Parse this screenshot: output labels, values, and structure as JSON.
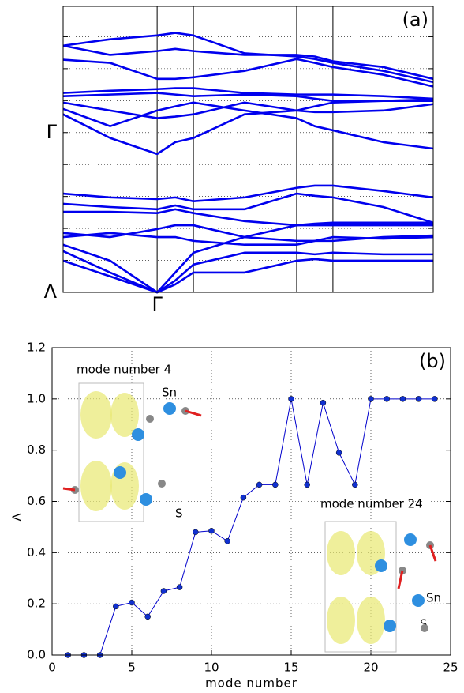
{
  "chart_data": [
    {
      "type": "line",
      "panel_label": "(a)",
      "x": [
        0,
        0.127,
        0.254,
        0.303,
        0.352,
        0.49,
        0.631,
        0.68,
        0.729,
        0.865,
        1.0
      ],
      "xlim": [
        0,
        1
      ],
      "ylim": [
        0,
        8.95
      ],
      "xticks": [
        {
          "value": 0.254,
          "label": "Γ"
        },
        {
          "value": 0.352,
          "label": null
        },
        {
          "value": 0.631,
          "label": null
        },
        {
          "value": 0.729,
          "label": null
        }
      ],
      "yticks": [
        {
          "value": 0,
          "label": "Λ"
        },
        {
          "value": 1,
          "label": null
        },
        {
          "value": 2,
          "label": null
        },
        {
          "value": 3,
          "label": null
        },
        {
          "value": 4,
          "label": null
        },
        {
          "value": 5,
          "label": "Γ"
        },
        {
          "value": 6,
          "label": null
        },
        {
          "value": 7,
          "label": null
        },
        {
          "value": 8,
          "label": null
        }
      ],
      "grid": true,
      "color": "#0000ee",
      "series": [
        {
          "values": [
            7.72,
            7.92,
            8.04,
            8.12,
            8.04,
            7.48,
            7.38,
            7.3,
            7.18,
            6.93,
            6.58
          ]
        },
        {
          "values": [
            7.72,
            7.43,
            7.55,
            7.62,
            7.55,
            7.43,
            7.43,
            7.38,
            7.23,
            7.05,
            6.68
          ]
        },
        {
          "values": [
            7.28,
            7.18,
            6.68,
            6.68,
            6.73,
            6.93,
            7.3,
            7.18,
            7.05,
            6.81,
            6.44
          ]
        },
        {
          "values": [
            6.24,
            6.31,
            6.36,
            6.39,
            6.39,
            6.24,
            6.19,
            6.19,
            6.19,
            6.14,
            6.06
          ]
        },
        {
          "values": [
            6.14,
            6.19,
            6.24,
            6.19,
            6.14,
            6.19,
            6.14,
            6.06,
            5.99,
            5.99,
            5.99
          ]
        },
        {
          "values": [
            5.94,
            5.69,
            5.45,
            5.5,
            5.57,
            5.94,
            5.69,
            5.64,
            5.64,
            5.69,
            5.89
          ]
        },
        {
          "values": [
            5.74,
            5.2,
            5.69,
            5.82,
            5.94,
            5.69,
            5.45,
            5.2,
            5.07,
            4.7,
            4.5
          ]
        },
        {
          "values": [
            5.57,
            4.83,
            4.33,
            4.7,
            4.83,
            5.57,
            5.69,
            5.82,
            5.94,
            5.99,
            6.04
          ]
        },
        {
          "values": [
            3.09,
            2.97,
            2.92,
            2.97,
            2.85,
            2.97,
            3.27,
            3.34,
            3.34,
            3.17,
            2.97
          ]
        },
        {
          "values": [
            2.77,
            2.67,
            2.6,
            2.72,
            2.6,
            2.6,
            3.09,
            3.02,
            2.97,
            2.67,
            2.18
          ]
        },
        {
          "values": [
            2.52,
            2.52,
            2.48,
            2.6,
            2.48,
            2.23,
            2.1,
            2.1,
            2.1,
            2.1,
            2.1
          ]
        },
        {
          "values": [
            1.86,
            1.73,
            1.98,
            2.1,
            2.1,
            1.73,
            1.61,
            1.61,
            1.61,
            1.73,
            1.78
          ]
        },
        {
          "values": [
            1.73,
            1.86,
            1.73,
            1.73,
            1.61,
            1.49,
            1.49,
            1.61,
            1.73,
            1.68,
            1.73
          ]
        },
        {
          "values": [
            1.49,
            0.99,
            0,
            0.62,
            1.24,
            1.73,
            2.1,
            2.15,
            2.18,
            2.18,
            2.18
          ]
        },
        {
          "values": [
            1.29,
            0.62,
            0,
            0.37,
            0.87,
            1.24,
            1.24,
            1.19,
            1.24,
            1.19,
            1.19
          ]
        },
        {
          "values": [
            0.99,
            0.5,
            0,
            0.25,
            0.62,
            0.62,
            0.99,
            1.04,
            0.99,
            0.99,
            0.99
          ]
        }
      ]
    },
    {
      "type": "line",
      "panel_label": "(b)",
      "x_label": "mode number",
      "y_label": "Λ",
      "x": [
        1,
        2,
        3,
        4,
        5,
        6,
        7,
        8,
        9,
        10,
        11,
        12,
        13,
        14,
        15,
        16,
        17,
        18,
        19,
        20,
        21,
        22,
        23,
        24
      ],
      "xlim": [
        0,
        25
      ],
      "ylim": [
        0,
        1.2
      ],
      "xticks": [
        0,
        5,
        10,
        15,
        20,
        25
      ],
      "yticks": [
        {
          "value": 0,
          "label": "0.0"
        },
        {
          "value": 0.2,
          "label": "0.2"
        },
        {
          "value": 0.4,
          "label": "0.4"
        },
        {
          "value": 0.6,
          "label": "0.6"
        },
        {
          "value": 0.8,
          "label": "0.8"
        },
        {
          "value": 1.0,
          "label": "1.0"
        },
        {
          "value": 1.2,
          "label": "1.2"
        }
      ],
      "grid": true,
      "series": [
        {
          "color": "#0000cc",
          "values": [
            0,
            0,
            0,
            0.19,
            0.205,
            0.15,
            0.25,
            0.265,
            0.48,
            0.485,
            0.445,
            0.615,
            0.665,
            0.665,
            1.0,
            0.665,
            0.985,
            0.79,
            0.665,
            1.0,
            1.0,
            1.0,
            1.0,
            1.0
          ]
        }
      ],
      "annotations": [
        {
          "text": "mode number 4"
        },
        {
          "text": "Sn"
        },
        {
          "text": "S"
        },
        {
          "text": "mode number 24"
        },
        {
          "text": "Sn"
        },
        {
          "text": "S"
        }
      ]
    }
  ]
}
